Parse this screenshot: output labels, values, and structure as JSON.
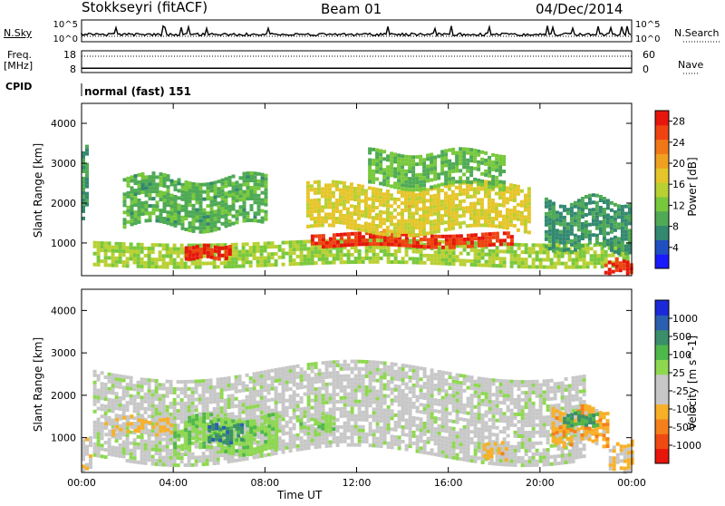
{
  "header": {
    "station": "Stokkseyri (fitACF)",
    "beam": "Beam 01",
    "date": "04/Dec/2014"
  },
  "side_labels": {
    "nsky": "N.Sky",
    "nsearch": "N.Search",
    "freq_line1": "Freq.",
    "freq_line2": "[MHz]",
    "nave": "Nave",
    "cpid": "CPID"
  },
  "chart_data": [
    {
      "type": "line",
      "panel": "noise",
      "series": [
        {
          "name": "N.Sky",
          "style": "solid"
        },
        {
          "name": "N.Search",
          "style": "dotted"
        }
      ],
      "y_tick_labels_left": [
        "10^5",
        "10^0"
      ],
      "y_tick_labels_right": [
        "10^5",
        "10^0"
      ],
      "ylim": [
        0,
        5
      ]
    },
    {
      "type": "line",
      "panel": "frequency",
      "series": [
        {
          "name": "Freq.",
          "style": "solid",
          "values": [
            10.0,
            10.0
          ]
        },
        {
          "name": "Nave",
          "style": "dotted",
          "values": [
            45,
            45
          ]
        }
      ],
      "x": [
        0,
        24
      ],
      "y_ticks_left": [
        8,
        18
      ],
      "y_ticks_right": [
        0,
        60
      ]
    },
    {
      "type": "table",
      "panel": "cpid",
      "program_label": "normal (fast) 151"
    },
    {
      "type": "heatmap",
      "panel": "power",
      "ylabel": "Slant Range [km]",
      "ylim": [
        180,
        4500
      ],
      "y_ticks": [
        1000,
        2000,
        3000,
        4000
      ],
      "colorbar": {
        "label": "Power [dB]",
        "ticks": [
          4,
          8,
          12,
          16,
          20,
          24,
          28
        ],
        "range": [
          0,
          30
        ],
        "colors": [
          "#1a1aff",
          "#2050c0",
          "#338870",
          "#4faa55",
          "#78c83c",
          "#b9d032",
          "#e5c52a",
          "#f0a020",
          "#f07818",
          "#ef4412",
          "#e6160c"
        ]
      },
      "regions": [
        {
          "t": [
            0.5,
            23.8
          ],
          "r": [
            500,
            1050
          ],
          "value": 14
        },
        {
          "t": [
            4.5,
            6.5
          ],
          "r": [
            650,
            950
          ],
          "value": 28
        },
        {
          "t": [
            10.0,
            18.8
          ],
          "r": [
            900,
            1250
          ],
          "value": 27
        },
        {
          "t": [
            1.8,
            8.0
          ],
          "r": [
            1450,
            2650
          ],
          "value": 10
        },
        {
          "t": [
            9.8,
            19.5
          ],
          "r": [
            1350,
            2450
          ],
          "value": 17
        },
        {
          "t": [
            12.5,
            18.5
          ],
          "r": [
            2450,
            3300
          ],
          "value": 11
        },
        {
          "t": [
            20.2,
            23.9
          ],
          "r": [
            900,
            2100
          ],
          "value": 8
        },
        {
          "t": [
            22.8,
            24.0
          ],
          "r": [
            250,
            600
          ],
          "value": 28
        },
        {
          "t": [
            0.0,
            0.3
          ],
          "r": [
            1800,
            3500
          ],
          "value": 8
        }
      ]
    },
    {
      "type": "heatmap",
      "panel": "velocity",
      "xlabel": "Time UT",
      "ylabel": "Slant Range [km]",
      "ylim": [
        180,
        4500
      ],
      "y_ticks": [
        1000,
        2000,
        3000,
        4000
      ],
      "x_tick_labels": [
        "00:00",
        "04:00",
        "08:00",
        "12:00",
        "16:00",
        "20:00",
        "00:00"
      ],
      "x_ticks": [
        0,
        4,
        8,
        12,
        16,
        20,
        24
      ],
      "xlim": [
        0,
        24
      ],
      "colorbar": {
        "label": "Velocity [m s^-1]",
        "tick_labels": [
          "1000",
          "500",
          "100",
          "25",
          "-25",
          "-100",
          "-500",
          "-1000"
        ],
        "range": [
          -1200,
          1200
        ],
        "colors": [
          "#e8150b",
          "#ef4a12",
          "#f5801b",
          "#f7b028",
          "#c7c7c7",
          "#c7c7c7",
          "#8ed850",
          "#4fb84a",
          "#3a8f6a",
          "#2b5fb0",
          "#1a2ad8"
        ]
      },
      "regions": [
        {
          "t": [
            0.5,
            22.0
          ],
          "r": [
            600,
            2600
          ],
          "value": 0
        },
        {
          "t": [
            1.0,
            4.0
          ],
          "r": [
            1100,
            1500
          ],
          "value": -300
        },
        {
          "t": [
            4.0,
            8.5
          ],
          "r": [
            700,
            1500
          ],
          "value": 250
        },
        {
          "t": [
            5.5,
            7.0
          ],
          "r": [
            900,
            1300
          ],
          "value": 700
        },
        {
          "t": [
            9.5,
            11.0
          ],
          "r": [
            1100,
            1500
          ],
          "value": 200
        },
        {
          "t": [
            17.5,
            18.5
          ],
          "r": [
            500,
            900
          ],
          "value": -400
        },
        {
          "t": [
            20.5,
            23.0
          ],
          "r": [
            900,
            1700
          ],
          "value": -450
        },
        {
          "t": [
            21.0,
            22.5
          ],
          "r": [
            1300,
            1600
          ],
          "value": 600
        },
        {
          "t": [
            23.0,
            24.0
          ],
          "r": [
            250,
            900
          ],
          "value": -350
        },
        {
          "t": [
            0.0,
            0.4
          ],
          "r": [
            300,
            1000
          ],
          "value": -250
        }
      ]
    }
  ]
}
